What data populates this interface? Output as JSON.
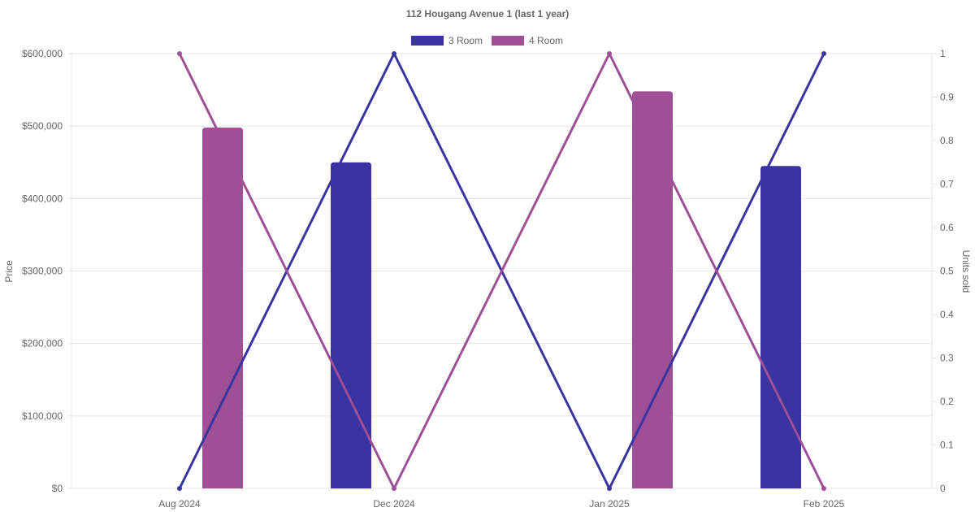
{
  "chart_data": {
    "type": "bar",
    "title": "112 Hougang Avenue 1 (last 1 year)",
    "categories": [
      "Aug 2024",
      "Dec 2024",
      "Jan 2025",
      "Feb 2025"
    ],
    "y_left": {
      "label": "Price",
      "ylim": [
        0,
        600000
      ],
      "ticks": [
        "$0",
        "$100,000",
        "$200,000",
        "$300,000",
        "$400,000",
        "$500,000",
        "$600,000"
      ]
    },
    "y_right": {
      "label": "Units sold",
      "ylim": [
        0,
        1
      ],
      "ticks": [
        "0",
        "0.1",
        "0.2",
        "0.3",
        "0.4",
        "0.5",
        "0.6",
        "0.7",
        "0.8",
        "0.9",
        "1"
      ]
    },
    "series": [
      {
        "name": "3 Room",
        "color": "#3A34A0",
        "bar_values": [
          null,
          450000,
          null,
          445000
        ],
        "line_values": [
          0,
          1,
          0,
          1
        ]
      },
      {
        "name": "4 Room",
        "color": "#9E4F95",
        "bar_values": [
          498000,
          null,
          548000,
          null
        ],
        "line_values": [
          1,
          0,
          1,
          0
        ]
      }
    ],
    "grid": true,
    "legend_position": "top"
  }
}
